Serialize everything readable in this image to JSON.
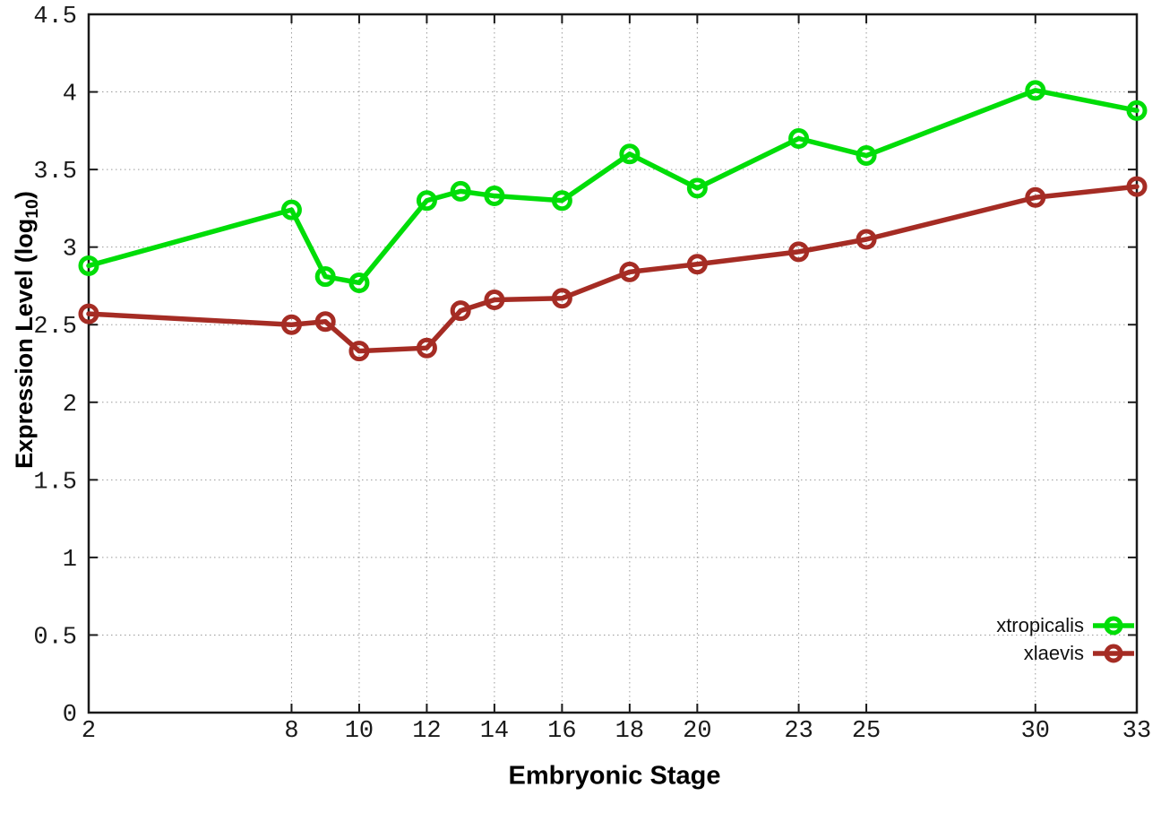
{
  "chart_data": {
    "type": "line",
    "title": "",
    "xlabel": "Embryonic Stage",
    "ylabel": "Expression Level (log10)",
    "ylabel_parts": {
      "prefix": "Expression Level (log",
      "subscript": "10",
      "suffix": ")"
    },
    "x": [
      2,
      8,
      9,
      10,
      12,
      13,
      14,
      16,
      18,
      20,
      23,
      25,
      30,
      33
    ],
    "series": [
      {
        "name": "xtropicalis",
        "color": "#00dd08",
        "values": [
          2.88,
          3.24,
          2.81,
          2.77,
          3.3,
          3.36,
          3.33,
          3.3,
          3.6,
          3.38,
          3.7,
          3.59,
          4.01,
          3.88
        ]
      },
      {
        "name": "xlaevis",
        "color": "#a52c24",
        "values": [
          2.57,
          2.5,
          2.52,
          2.33,
          2.35,
          2.59,
          2.66,
          2.67,
          2.84,
          2.89,
          2.97,
          3.05,
          3.32,
          3.39
        ]
      }
    ],
    "x_ticks": [
      2,
      8,
      10,
      12,
      14,
      16,
      18,
      20,
      23,
      25,
      30,
      33
    ],
    "x_tick_labels": [
      "2",
      "8",
      "10",
      "12",
      "14",
      "16",
      "18",
      "20",
      "23",
      "25",
      "30",
      "33"
    ],
    "y_ticks": [
      0,
      0.5,
      1,
      1.5,
      2,
      2.5,
      3,
      3.5,
      4,
      4.5
    ],
    "y_tick_labels": [
      "0",
      "0.5",
      "1",
      "1.5",
      "2",
      "2.5",
      "3",
      "3.5",
      "4",
      "4.5"
    ],
    "xlim": [
      2,
      33
    ],
    "ylim": [
      0,
      4.5
    ],
    "grid": true,
    "marker": "open-circle",
    "legend_position": "bottom-right",
    "background_color": "#ffffff",
    "axis_color": "#1a1a1a"
  }
}
